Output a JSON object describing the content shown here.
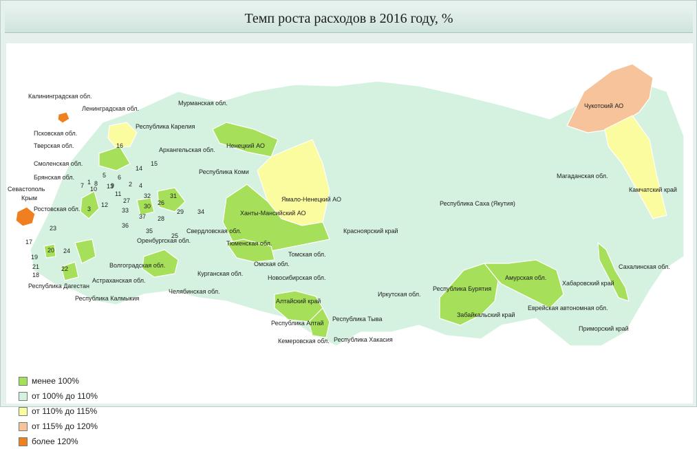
{
  "title": "Темп роста расходов в 2016 году, %",
  "colors": {
    "lt100": "#a6e05a",
    "r100_110": "#d4f2df",
    "r110_115": "#fbfba0",
    "r115_120": "#f6c39a",
    "gt120": "#f07f1f",
    "border": "#ffffff",
    "water": "#ffffff"
  },
  "legend": [
    {
      "label": "менее 100%",
      "color_key": "lt100"
    },
    {
      "label": "от 100% до 110%",
      "color_key": "r100_110"
    },
    {
      "label": "от 110% до 115%",
      "color_key": "r110_115"
    },
    {
      "label": "от 115% до 120%",
      "color_key": "r115_120"
    },
    {
      "label": "более 120%",
      "color_key": "gt120"
    }
  ],
  "region_labels": {
    "kaliningrad": "Калининградская обл.",
    "leningrad": "Ленинградская обл.",
    "murmansk": "Мурманская обл.",
    "karelia": "Республика Карелия",
    "pskov": "Псковская обл.",
    "tver": "Тверская обл.",
    "smolensk": "Смоленская обл.",
    "bryansk": "Брянская обл.",
    "sevastopol": "Севастополь",
    "crimea": "Крым",
    "rostov": "Ростовская обл.",
    "arkhangelsk": "Архангельская обл.",
    "nenets": "Ненецкий АО",
    "komi": "Республика Коми",
    "yamal": "Ямало-Ненецкий АО",
    "khanty": "Ханты-Мансийский АО",
    "sverdlovsk": "Свердловская обл.",
    "tyumen": "Тюменская обл.",
    "orenburg": "Оренбургская обл.",
    "volgograd": "Волгоградская обл.",
    "astrakhan": "Астраханская обл.",
    "kalmykia": "Республика Калмыкия",
    "dagestan": "Республика Дагестан",
    "kurgan": "Курганская обл.",
    "chelyabinsk": "Челябинская обл.",
    "omsk": "Омская обл.",
    "tomsk": "Томская обл.",
    "novosibirsk": "Новосибирская обл.",
    "altai_krai": "Алтайский край",
    "altai_rep": "Республика Алтай",
    "kemerovo": "Кемеровская обл.",
    "tyva": "Республика Тыва",
    "khakasia": "Республика Хакасия",
    "krasnoyarsk": "Красноярский край",
    "irkutsk": "Иркутская обл.",
    "buryatia": "Республика Бурятия",
    "zabaikalsky": "Забайкальский край",
    "amur": "Амурская обл.",
    "yakutia": "Республика Саха (Якутия)",
    "magadan": "Магаданская обл.",
    "chukotka": "Чукотский АО",
    "kamchatka": "Камчатский край",
    "sakhalin": "Сахалинская обл.",
    "khabarovsk": "Хабаровский край",
    "jewish": "Еврейская автономная обл.",
    "primorsky": "Приморский край"
  },
  "region_numbers": [
    "1",
    "2",
    "3",
    "4",
    "5",
    "6",
    "7",
    "8",
    "9",
    "10",
    "11",
    "12",
    "13",
    "14",
    "15",
    "16",
    "17",
    "18",
    "19",
    "20",
    "21",
    "22",
    "23",
    "24",
    "25",
    "26",
    "27",
    "28",
    "29",
    "30",
    "31",
    "32",
    "33",
    "34",
    "35",
    "36",
    "37"
  ]
}
